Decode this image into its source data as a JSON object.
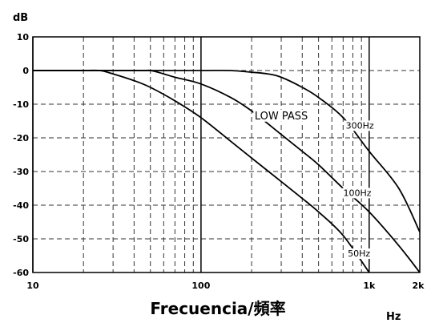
{
  "chart_data": {
    "type": "line",
    "title": "",
    "ylabel": "dB",
    "xlabel": "Frecuencia/頻率",
    "xunit": "Hz",
    "x_scale": "log",
    "xlim": [
      10,
      2000
    ],
    "ylim": [
      -60,
      10
    ],
    "x_ticks": [
      {
        "value": 10,
        "label": "10"
      },
      {
        "value": 100,
        "label": "100"
      },
      {
        "value": 1000,
        "label": "1k"
      },
      {
        "value": 2000,
        "label": "2k"
      }
    ],
    "y_ticks": [
      {
        "value": 10,
        "label": "10"
      },
      {
        "value": 0,
        "label": "0"
      },
      {
        "value": -10,
        "label": "-10"
      },
      {
        "value": -20,
        "label": "-20"
      },
      {
        "value": -30,
        "label": "-30"
      },
      {
        "value": -40,
        "label": "-40"
      },
      {
        "value": -50,
        "label": "-50"
      },
      {
        "value": -60,
        "label": "-60"
      }
    ],
    "major_gridlines_x": [
      10,
      100,
      1000
    ],
    "minor_gridlines_x": [
      20,
      30,
      40,
      50,
      60,
      70,
      80,
      90,
      200,
      300,
      400,
      500,
      600,
      700,
      800,
      900
    ],
    "grid": true,
    "series": [
      {
        "name": "50Hz",
        "label_at": {
          "x": 870,
          "y": -55
        },
        "points": [
          [
            10,
            0
          ],
          [
            20,
            0
          ],
          [
            25,
            0
          ],
          [
            30,
            -1
          ],
          [
            40,
            -3
          ],
          [
            50,
            -5
          ],
          [
            70,
            -9
          ],
          [
            100,
            -14
          ],
          [
            150,
            -21
          ],
          [
            200,
            -26
          ],
          [
            300,
            -33
          ],
          [
            400,
            -38
          ],
          [
            500,
            -42
          ],
          [
            700,
            -49
          ],
          [
            1000,
            -60
          ]
        ]
      },
      {
        "name": "100Hz",
        "label_at": {
          "x": 850,
          "y": -37
        },
        "points": [
          [
            10,
            0
          ],
          [
            40,
            0
          ],
          [
            50,
            0
          ],
          [
            60,
            -1
          ],
          [
            70,
            -2
          ],
          [
            100,
            -4
          ],
          [
            150,
            -8
          ],
          [
            200,
            -12
          ],
          [
            300,
            -19
          ],
          [
            400,
            -24
          ],
          [
            500,
            -28
          ],
          [
            700,
            -35
          ],
          [
            1000,
            -42
          ],
          [
            1500,
            -52
          ],
          [
            2000,
            -60
          ]
        ]
      },
      {
        "name": "300Hz",
        "label_at": {
          "x": 880,
          "y": -17
        },
        "points": [
          [
            10,
            0
          ],
          [
            50,
            0
          ],
          [
            100,
            0
          ],
          [
            150,
            0
          ],
          [
            200,
            -0.5
          ],
          [
            250,
            -1
          ],
          [
            300,
            -2
          ],
          [
            400,
            -5
          ],
          [
            500,
            -8
          ],
          [
            700,
            -14
          ],
          [
            1000,
            -24
          ],
          [
            1500,
            -35
          ],
          [
            2000,
            -48
          ]
        ]
      }
    ],
    "annotations": [
      {
        "text": "LOW PASS",
        "x": 300,
        "y": -14
      }
    ]
  }
}
